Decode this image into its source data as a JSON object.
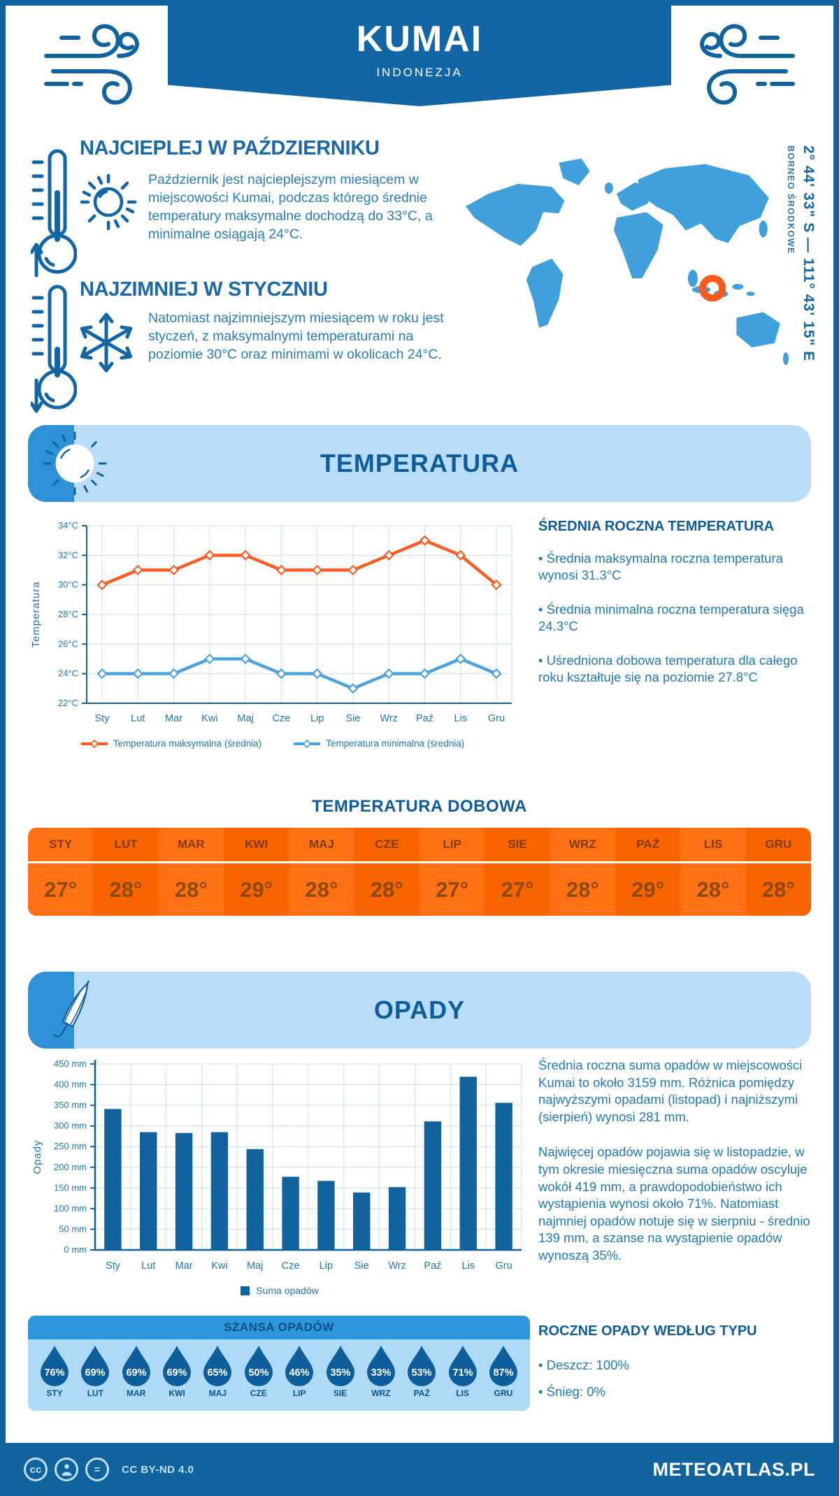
{
  "header": {
    "title": "KUMAI",
    "subtitle": "INDONEZJA"
  },
  "highlights": [
    {
      "heading": "NAJCIEPLEJ W PAŹDZIERNIKU",
      "text": "Październik jest najcieplejszym miesiącem w miejscowości Kumai, podczas którego średnie temperatury maksymalne dochodzą do 33°C, a minimalne osiągają 24°C."
    },
    {
      "heading": "NAJZIMNIEJ W STYCZNIU",
      "text": "Natomiast najzimniejszym miesiącem w roku jest styczeń, z maksymalnymi temperaturami na poziomie 30°C oraz minimami w okolicach 24°C."
    }
  ],
  "map": {
    "coordinates": "2° 44' 33\" S — 111° 43' 15\" E",
    "region": "BORNEO ŚRODKOWE"
  },
  "sections": {
    "temperature_title": "TEMPERATURA",
    "precipitation_title": "OPADY"
  },
  "annual_temperature": {
    "heading": "ŚREDNIA ROCZNA TEMPERATURA",
    "bullets": [
      "• Średnia maksymalna roczna temperatura wynosi 31.3°C",
      "• Średnia minimalna roczna temperatura sięga 24.3°C",
      "• Uśredniona dobowa temperatura dla całego roku kształtuje się na poziomie 27.8°C"
    ]
  },
  "daily_temp": {
    "title": "TEMPERATURA DOBOWA",
    "months": [
      "STY",
      "LUT",
      "MAR",
      "KWI",
      "MAJ",
      "CZE",
      "LIP",
      "SIE",
      "WRZ",
      "PAŹ",
      "LIS",
      "GRU"
    ],
    "values": [
      "27°",
      "28°",
      "28°",
      "29°",
      "28°",
      "28°",
      "27°",
      "27°",
      "28°",
      "29°",
      "28°",
      "28°"
    ]
  },
  "precip_text": {
    "paragraphs": [
      "Średnia roczna suma opadów w miejscowości Kumai to około 3159 mm. Różnica pomiędzy najwyższymi opadami (listopad) i najniższymi (sierpień) wynosi 281 mm.",
      "Najwięcej opadów pojawia się w listopadzie, w tym okresie miesięczna suma opadów oscyluje wokół 419 mm, a prawdopodobieństwo ich wystąpienia wynosi około 71%. Natomiast najmniej opadów notuje się w sierpniu - średnio 139 mm, a szanse na wystąpienie opadów wynoszą 35%."
    ]
  },
  "rain_chance": {
    "title": "SZANSA OPADÓW",
    "months": [
      "STY",
      "LUT",
      "MAR",
      "KWI",
      "MAJ",
      "CZE",
      "LIP",
      "SIE",
      "WRZ",
      "PAŹ",
      "LIS",
      "GRU"
    ],
    "values": [
      "76%",
      "69%",
      "69%",
      "69%",
      "65%",
      "50%",
      "46%",
      "35%",
      "33%",
      "53%",
      "71%",
      "87%"
    ]
  },
  "precip_type": {
    "heading": "ROCZNE OPADY WEDŁUG TYPU",
    "bullets": [
      "• Deszcz: 100%",
      "• Śnieg: 0%"
    ]
  },
  "footer": {
    "license": "CC BY-ND 4.0",
    "site": "METEOATLAS.PL"
  },
  "chart_data": [
    {
      "type": "line",
      "title": "TEMPERATURA",
      "categories": [
        "Sty",
        "Lut",
        "Mar",
        "Kwi",
        "Maj",
        "Cze",
        "Lip",
        "Sie",
        "Wrz",
        "Paź",
        "Lis",
        "Gru"
      ],
      "series": [
        {
          "name": "Temperatura maksymalna (średnia)",
          "color": "#F95D22",
          "values": [
            30,
            31,
            31,
            32,
            32,
            31,
            31,
            31,
            32,
            33,
            32,
            30
          ]
        },
        {
          "name": "Temperatura minimalna (średnia)",
          "color": "#4DA3DD",
          "values": [
            24,
            24,
            24,
            25,
            25,
            24,
            24,
            23,
            24,
            24,
            25,
            24
          ]
        }
      ],
      "ylabel": "Temperatura",
      "ylim": [
        22,
        34
      ],
      "ytick_step": 2,
      "ytick_suffix": "°C",
      "grid": true,
      "legend_position": "bottom"
    },
    {
      "type": "bar",
      "title": "OPADY",
      "categories": [
        "Sty",
        "Lut",
        "Mar",
        "Kwi",
        "Maj",
        "Cze",
        "Lip",
        "Sie",
        "Wrz",
        "Paź",
        "Lis",
        "Gru"
      ],
      "values": [
        341,
        285,
        283,
        285,
        244,
        177,
        167,
        139,
        152,
        311,
        419,
        356
      ],
      "series_name": "Suma opadów",
      "color": "#11639E",
      "ylabel": "Opady",
      "ylim": [
        0,
        450
      ],
      "ytick_step": 50,
      "ytick_suffix": " mm",
      "grid": true,
      "legend_position": "bottom"
    }
  ],
  "colors": {
    "primary": "#11639E",
    "banner": "#1266A6",
    "accent": "#2E91D5",
    "light_panel": "#B9DDF8",
    "grid": "#C9DFEF",
    "axis_text": "#2277B5",
    "max_line": "#F95D22",
    "min_line": "#4DA3DD",
    "bar": "#11639E",
    "map_land": "#3FA0DC",
    "marker": "#FF5A1E",
    "table_orange_a": "#FF7114",
    "table_orange_b": "#F86400",
    "drop": "#0E5E9C"
  }
}
